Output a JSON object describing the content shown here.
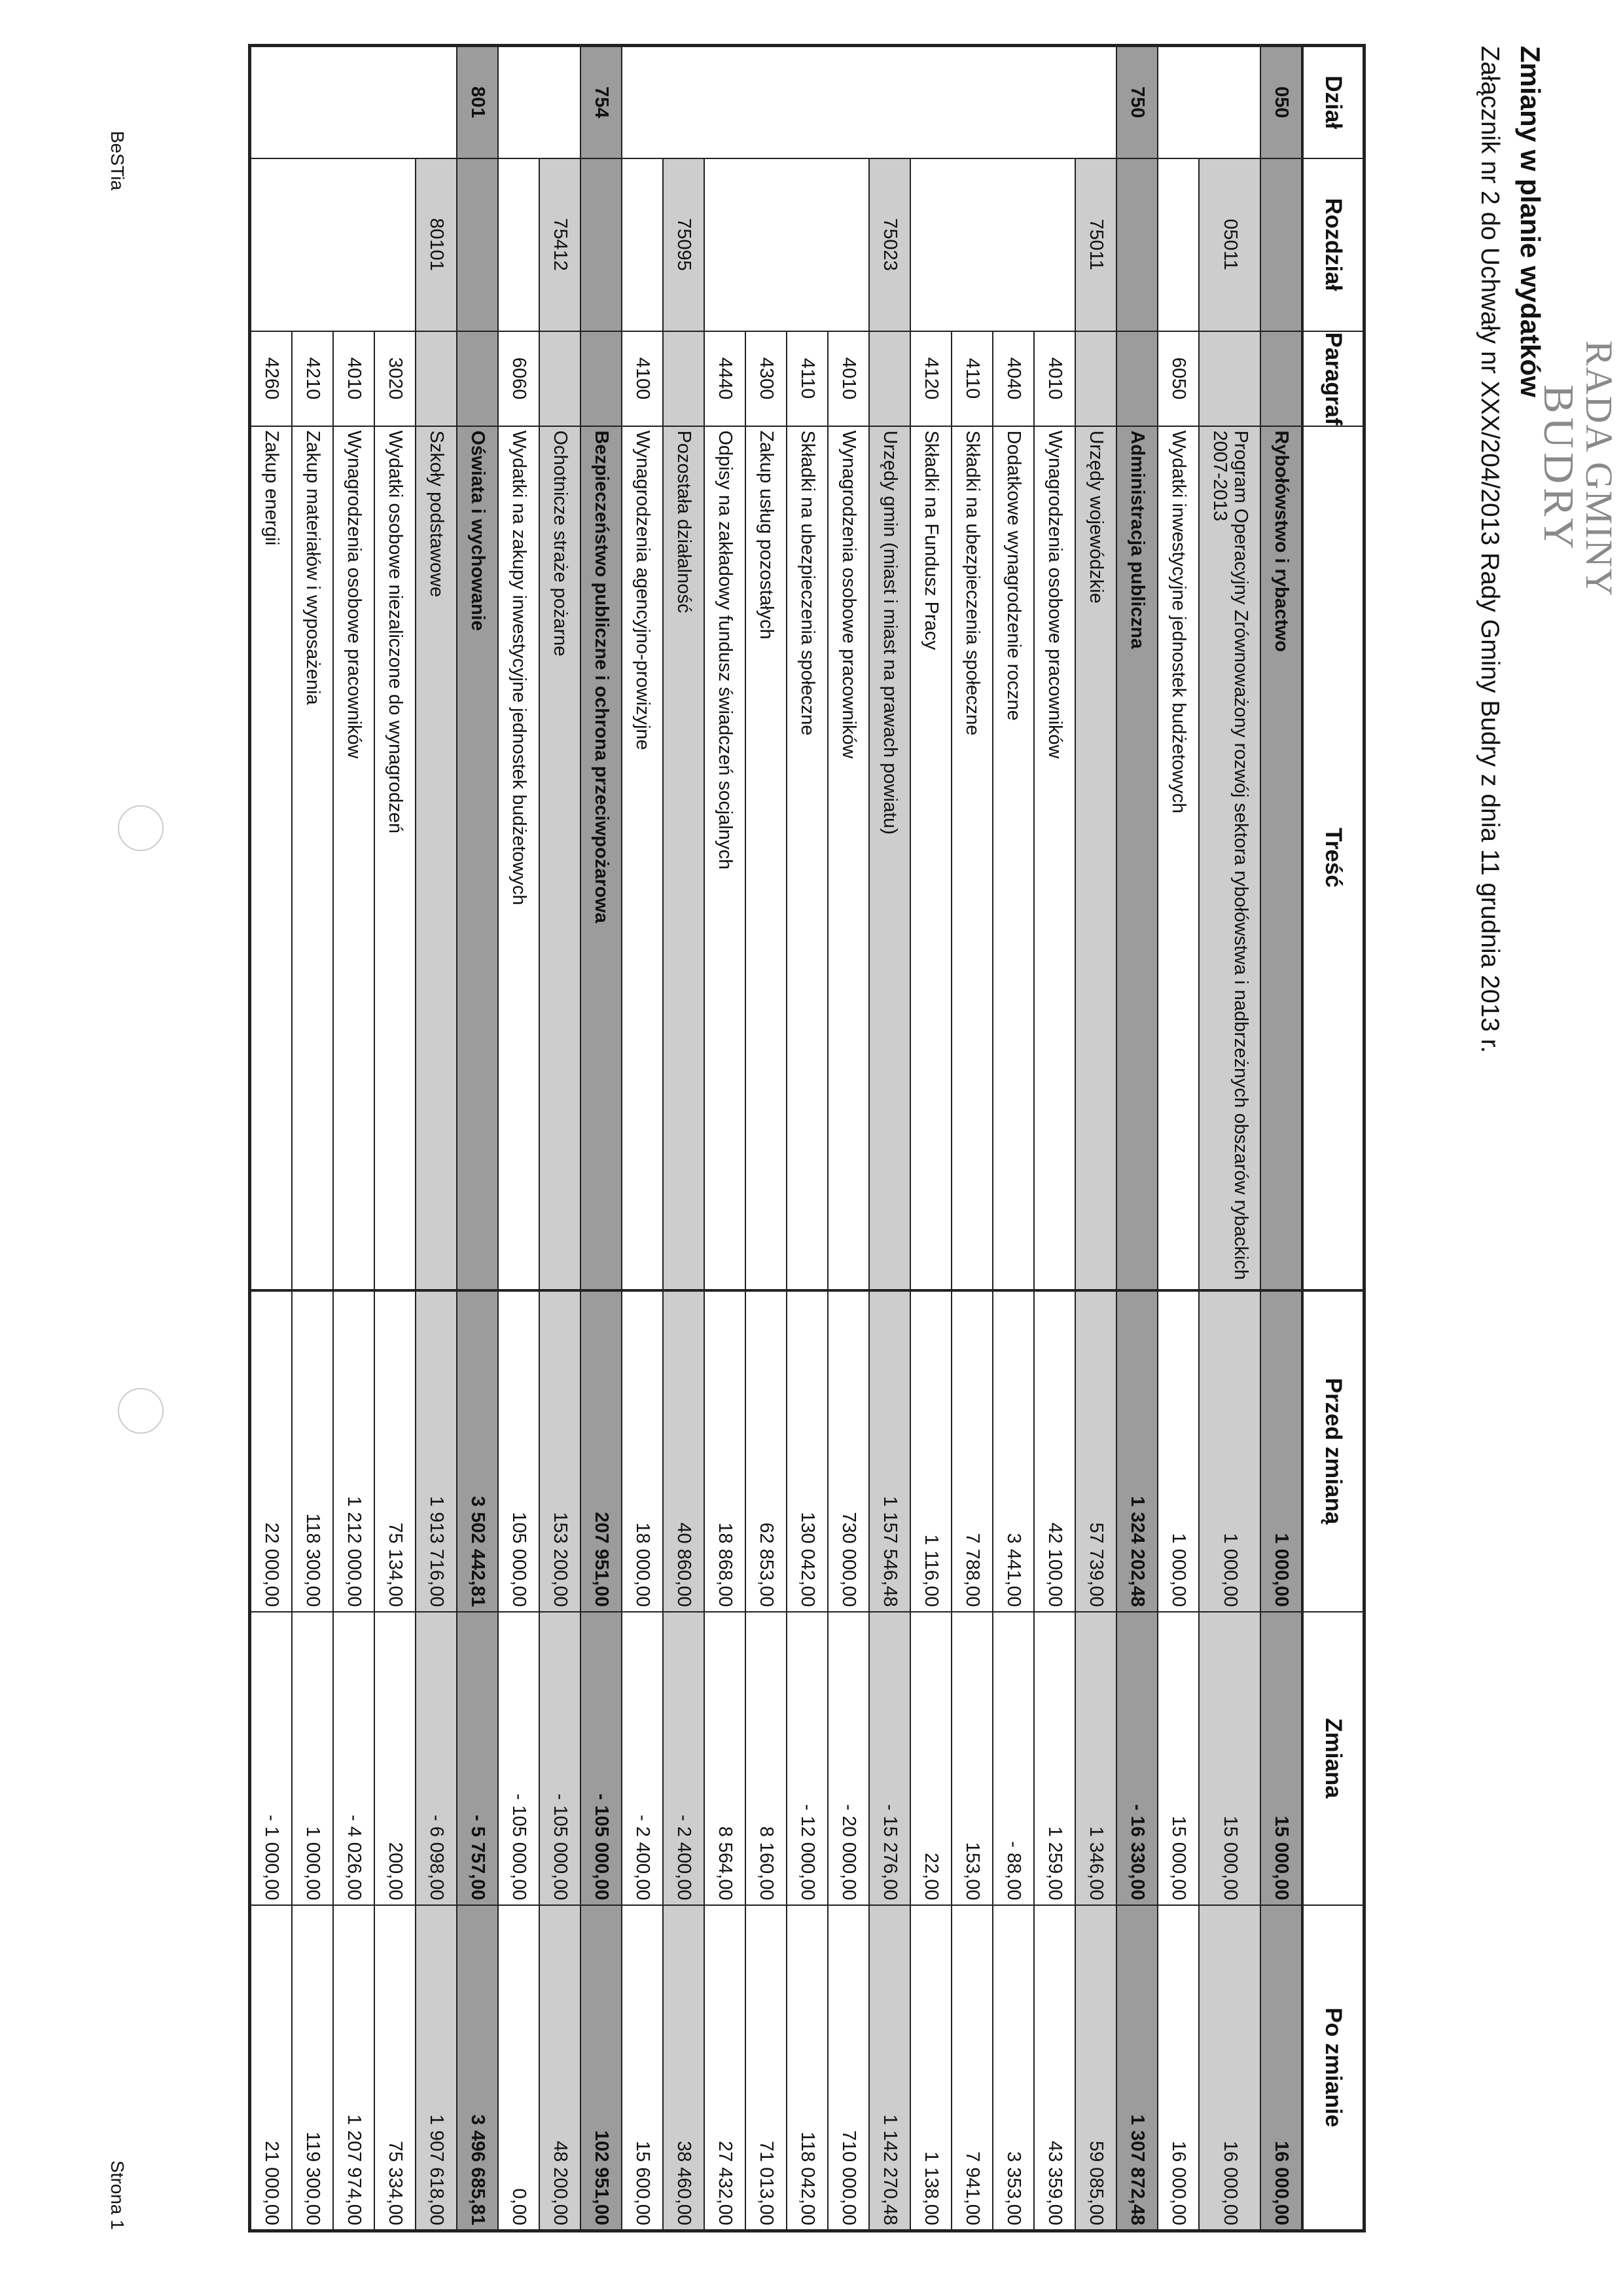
{
  "stamp": {
    "line1": "RADA GMINY",
    "line2": "BUDRY"
  },
  "title": "Zmiany w planie wydatków",
  "subtitle": "Załącznik nr 2 do Uchwały nr XXX/204/2013 Rady Gminy Budry z dnia 11 grudnia  2013 r.",
  "table": {
    "headers": [
      "Dział",
      "Rozdział",
      "Paragraf",
      "Treść",
      "Przed zmianą",
      "Zmiana",
      "Po zmianie"
    ],
    "rows": [
      {
        "level": "d",
        "dzial": "050",
        "rozdzial": "",
        "paragraf": "",
        "tresc": "Rybołówstwo i rybactwo",
        "przed": "1 000,00",
        "zmiana": "15 000,00",
        "po": "16 000,00"
      },
      {
        "level": "r",
        "dzial": "",
        "rozdzial": "05011",
        "paragraf": "",
        "tresc": "Program Operacyjny Zrównoważony rozwój sektora rybołówstwa i nadbrzeżnych obszarów rybackich 2007-2013",
        "przed": "1 000,00",
        "zmiana": "15 000,00",
        "po": "16 000,00"
      },
      {
        "level": "p",
        "dzial": "",
        "rozdzial": "",
        "paragraf": "6050",
        "tresc": "Wydatki inwestycyjne jednostek budżetowych",
        "przed": "1 000,00",
        "zmiana": "15 000,00",
        "po": "16 000,00"
      },
      {
        "level": "d",
        "dzial": "750",
        "rozdzial": "",
        "paragraf": "",
        "tresc": "Administracja publiczna",
        "przed": "1 324 202,48",
        "zmiana": "- 16 330,00",
        "po": "1 307 872,48"
      },
      {
        "level": "r",
        "dzial": "",
        "rozdzial": "75011",
        "paragraf": "",
        "tresc": "Urzędy wojewódzkie",
        "przed": "57 739,00",
        "zmiana": "1 346,00",
        "po": "59 085,00"
      },
      {
        "level": "p",
        "dzial": "",
        "rozdzial": "",
        "paragraf": "4010",
        "tresc": "Wynagrodzenia osobowe pracowników",
        "przed": "42 100,00",
        "zmiana": "1 259,00",
        "po": "43 359,00"
      },
      {
        "level": "p",
        "dzial": "",
        "rozdzial": "",
        "paragraf": "4040",
        "tresc": "Dodatkowe wynagrodzenie roczne",
        "przed": "3 441,00",
        "zmiana": "- 88,00",
        "po": "3 353,00"
      },
      {
        "level": "p",
        "dzial": "",
        "rozdzial": "",
        "paragraf": "4110",
        "tresc": "Składki na ubezpieczenia społeczne",
        "przed": "7 788,00",
        "zmiana": "153,00",
        "po": "7 941,00"
      },
      {
        "level": "p",
        "dzial": "",
        "rozdzial": "",
        "paragraf": "4120",
        "tresc": "Składki na Fundusz Pracy",
        "przed": "1 116,00",
        "zmiana": "22,00",
        "po": "1 138,00"
      },
      {
        "level": "r",
        "dzial": "",
        "rozdzial": "75023",
        "paragraf": "",
        "tresc": "Urzędy gmin (miast i miast na prawach powiatu)",
        "przed": "1 157 546,48",
        "zmiana": "- 15 276,00",
        "po": "1 142 270,48"
      },
      {
        "level": "p",
        "dzial": "",
        "rozdzial": "",
        "paragraf": "4010",
        "tresc": "Wynagrodzenia osobowe pracowników",
        "przed": "730 000,00",
        "zmiana": "- 20 000,00",
        "po": "710 000,00"
      },
      {
        "level": "p",
        "dzial": "",
        "rozdzial": "",
        "paragraf": "4110",
        "tresc": "Składki na ubezpieczenia społeczne",
        "przed": "130 042,00",
        "zmiana": "- 12 000,00",
        "po": "118 042,00"
      },
      {
        "level": "p",
        "dzial": "",
        "rozdzial": "",
        "paragraf": "4300",
        "tresc": "Zakup usług pozostałych",
        "przed": "62 853,00",
        "zmiana": "8 160,00",
        "po": "71 013,00"
      },
      {
        "level": "p",
        "dzial": "",
        "rozdzial": "",
        "paragraf": "4440",
        "tresc": "Odpisy na zakładowy fundusz świadczeń socjalnych",
        "przed": "18 868,00",
        "zmiana": "8 564,00",
        "po": "27 432,00"
      },
      {
        "level": "r",
        "dzial": "",
        "rozdzial": "75095",
        "paragraf": "",
        "tresc": "Pozostała działalność",
        "przed": "40 860,00",
        "zmiana": "- 2 400,00",
        "po": "38 460,00"
      },
      {
        "level": "p",
        "dzial": "",
        "rozdzial": "",
        "paragraf": "4100",
        "tresc": "Wynagrodzenia agencyjno-prowizyjne",
        "przed": "18 000,00",
        "zmiana": "- 2 400,00",
        "po": "15 600,00"
      },
      {
        "level": "d",
        "dzial": "754",
        "rozdzial": "",
        "paragraf": "",
        "tresc": "Bezpieczeństwo publiczne i ochrona przeciwpożarowa",
        "przed": "207 951,00",
        "zmiana": "- 105 000,00",
        "po": "102 951,00"
      },
      {
        "level": "r",
        "dzial": "",
        "rozdzial": "75412",
        "paragraf": "",
        "tresc": "Ochotnicze straże pożarne",
        "przed": "153 200,00",
        "zmiana": "- 105 000,00",
        "po": "48 200,00"
      },
      {
        "level": "p",
        "dzial": "",
        "rozdzial": "",
        "paragraf": "6060",
        "tresc": "Wydatki na zakupy inwestycyjne jednostek budżetowych",
        "przed": "105 000,00",
        "zmiana": "- 105 000,00",
        "po": "0,00"
      },
      {
        "level": "d",
        "dzial": "801",
        "rozdzial": "",
        "paragraf": "",
        "tresc": "Oświata i wychowanie",
        "przed": "3 502 442,81",
        "zmiana": "- 5 757,00",
        "po": "3 496 685,81"
      },
      {
        "level": "r",
        "dzial": "",
        "rozdzial": "80101",
        "paragraf": "",
        "tresc": "Szkoły podstawowe",
        "przed": "1 913 716,00",
        "zmiana": "- 6 098,00",
        "po": "1 907 618,00"
      },
      {
        "level": "p",
        "dzial": "",
        "rozdzial": "",
        "paragraf": "3020",
        "tresc": "Wydatki osobowe niezaliczone do wynagrodzeń",
        "przed": "75 134,00",
        "zmiana": "200,00",
        "po": "75 334,00"
      },
      {
        "level": "p",
        "dzial": "",
        "rozdzial": "",
        "paragraf": "4010",
        "tresc": "Wynagrodzenia osobowe pracowników",
        "przed": "1 212 000,00",
        "zmiana": "- 4 026,00",
        "po": "1 207 974,00"
      },
      {
        "level": "p",
        "dzial": "",
        "rozdzial": "",
        "paragraf": "4210",
        "tresc": "Zakup materiałów i wyposażenia",
        "przed": "118 300,00",
        "zmiana": "1 000,00",
        "po": "119 300,00"
      },
      {
        "level": "p",
        "dzial": "",
        "rozdzial": "",
        "paragraf": "4260",
        "tresc": "Zakup energii",
        "przed": "22 000,00",
        "zmiana": "- 1 000,00",
        "po": "21 000,00"
      }
    ]
  },
  "footer": {
    "left": "BeSTia",
    "right": "Strona 1"
  }
}
